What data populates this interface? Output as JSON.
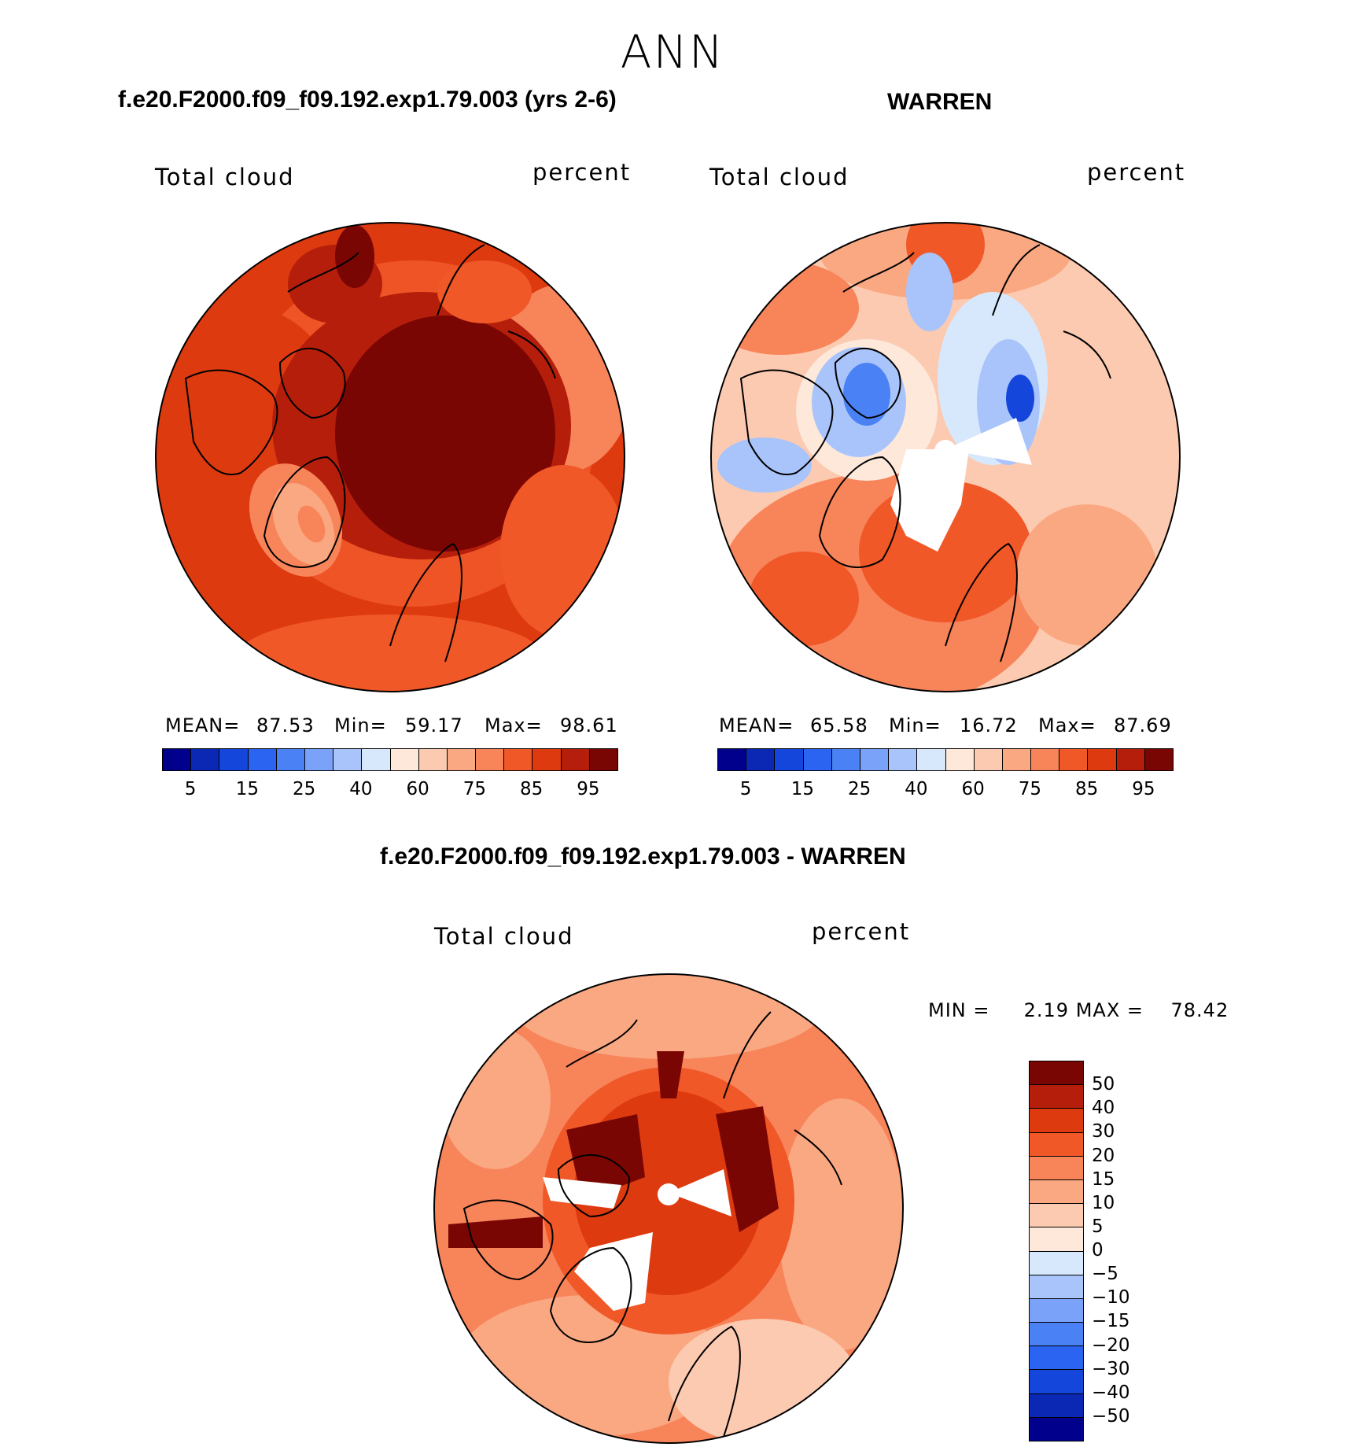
{
  "page_title": "ANN",
  "panels": [
    {
      "case_title": "f.e20.F2000.f09_f09.192.exp1.79.003 (yrs 2-6)",
      "variable": "Total cloud",
      "units": "percent",
      "mean_label": "MEAN=",
      "mean": "87.53",
      "min_label": "Min=",
      "min": "59.17",
      "max_label": "Max=",
      "max": "98.61"
    },
    {
      "case_title": "WARREN",
      "variable": "Total cloud",
      "units": "percent",
      "mean_label": "MEAN=",
      "mean": "65.58",
      "min_label": "Min=",
      "min": "16.72",
      "max_label": "Max=",
      "max": "87.69"
    },
    {
      "case_title": "f.e20.F2000.f09_f09.192.exp1.79.003 - WARREN",
      "variable": "Total cloud",
      "units": "percent",
      "minmax": "MIN =     2.19 MAX =    78.42"
    }
  ],
  "colorbar_abs": {
    "colors": [
      "#00008c",
      "#0a28b4",
      "#1446dc",
      "#2a64f0",
      "#4a82f5",
      "#7aa2f8",
      "#a9c4fb",
      "#d8e8fc",
      "#fde8da",
      "#fccab0",
      "#faa882",
      "#f8845a",
      "#f05828",
      "#dd3a10",
      "#b51e0a",
      "#7a0604"
    ],
    "ticks": [
      "5",
      "15",
      "25",
      "40",
      "60",
      "75",
      "85",
      "95"
    ]
  },
  "colorbar_diff": {
    "colors": [
      "#00008c",
      "#0a28b4",
      "#1446dc",
      "#2a64f0",
      "#4a82f5",
      "#7aa2f8",
      "#a9c4fb",
      "#d8e8fc",
      "#fde8da",
      "#fccab0",
      "#faa882",
      "#f8845a",
      "#f05828",
      "#dd3a10",
      "#b51e0a",
      "#7a0604"
    ],
    "ticks": [
      "50",
      "40",
      "30",
      "20",
      "15",
      "10",
      "5",
      "0",
      "−5",
      "−10",
      "−15",
      "−20",
      "−30",
      "−40",
      "−50"
    ]
  },
  "chart_data": {
    "type": "heatmap",
    "projection": "north polar stereographic",
    "season": "ANN",
    "field": "Total cloud",
    "units": "percent",
    "panels": [
      {
        "case": "f.e20.F2000.f09_f09.192.exp1.79.003 (yrs 2-6)",
        "mean": 87.53,
        "min": 59.17,
        "max": 98.61,
        "contour_levels": [
          5,
          10,
          15,
          20,
          25,
          30,
          40,
          50,
          60,
          65,
          75,
          80,
          85,
          90,
          95
        ]
      },
      {
        "case": "WARREN",
        "mean": 65.58,
        "min": 16.72,
        "max": 87.69,
        "contour_levels": [
          5,
          10,
          15,
          20,
          25,
          30,
          40,
          50,
          60,
          65,
          75,
          80,
          85,
          90,
          95
        ]
      },
      {
        "case": "f.e20.F2000.f09_f09.192.exp1.79.003 - WARREN",
        "min": 2.19,
        "max": 78.42,
        "contour_levels": [
          -50,
          -40,
          -30,
          -20,
          -15,
          -10,
          -5,
          0,
          5,
          10,
          15,
          20,
          30,
          40,
          50
        ]
      }
    ]
  }
}
